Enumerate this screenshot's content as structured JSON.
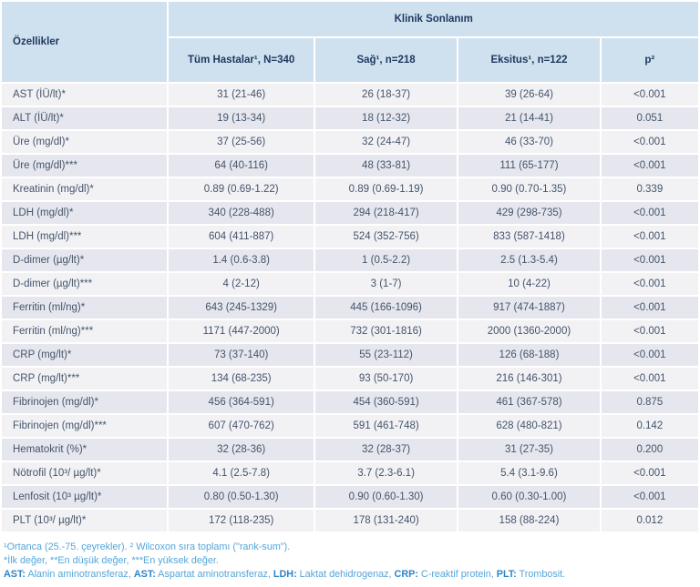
{
  "table": {
    "corner_header": "Özellikler",
    "group_header": "Klinik Sonlanım",
    "columns": [
      "Tüm Hastalar¹, N=340",
      "Sağ¹, n=218",
      "Eksitus¹, n=122",
      "p²"
    ],
    "rows": [
      {
        "label": "AST (İÜ/lt)*",
        "values": [
          "31 (21-46)",
          "26 (18-37)",
          "39 (26-64)",
          "<0.001"
        ]
      },
      {
        "label": "ALT (İÜ/lt)*",
        "values": [
          "19 (13-34)",
          "18 (12-32)",
          "21 (14-41)",
          "0.051"
        ]
      },
      {
        "label": "Üre (mg/dl)*",
        "values": [
          "37 (25-56)",
          "32 (24-47)",
          "46 (33-70)",
          "<0.001"
        ]
      },
      {
        "label": "Üre (mg/dl)***",
        "values": [
          "64 (40-116)",
          "48 (33-81)",
          "111 (65-177)",
          "<0.001"
        ]
      },
      {
        "label": "Kreatinin (mg/dl)*",
        "values": [
          "0.89 (0.69-1.22)",
          "0.89 (0.69-1.19)",
          "0.90 (0.70-1.35)",
          "0.339"
        ]
      },
      {
        "label": "LDH (mg/dl)*",
        "values": [
          "340 (228-488)",
          "294 (218-417)",
          "429 (298-735)",
          "<0.001"
        ]
      },
      {
        "label": "LDH (mg/dl)***",
        "values": [
          "604 (411-887)",
          "524 (352-756)",
          "833 (587-1418)",
          "<0.001"
        ]
      },
      {
        "label": "D-dimer (µg/lt)*",
        "values": [
          "1.4 (0.6-3.8)",
          "1 (0.5-2.2)",
          "2.5 (1.3-5.4)",
          "<0.001"
        ]
      },
      {
        "label": "D-dimer (µg/lt)***",
        "values": [
          "4 (2-12)",
          "3 (1-7)",
          "10 (4-22)",
          "<0.001"
        ]
      },
      {
        "label": "Ferritin (ml/ng)*",
        "values": [
          "643 (245-1329)",
          "445 (166-1096)",
          "917 (474-1887)",
          "<0.001"
        ]
      },
      {
        "label": "Ferritin (ml/ng)***",
        "values": [
          "1171 (447-2000)",
          "732 (301-1816)",
          "2000 (1360-2000)",
          "<0.001"
        ]
      },
      {
        "label": "CRP (mg/lt)*",
        "values": [
          "73 (37-140)",
          "55 (23-112)",
          "126 (68-188)",
          "<0.001"
        ]
      },
      {
        "label": "CRP (mg/lt)***",
        "values": [
          "134 (68-235)",
          "93 (50-170)",
          "216 (146-301)",
          "<0.001"
        ]
      },
      {
        "label": "Fibrinojen (mg/dl)*",
        "values": [
          "456 (364-591)",
          "454 (360-591)",
          "461 (367-578)",
          "0.875"
        ]
      },
      {
        "label": "Fibrinojen (mg/dl)***",
        "values": [
          "607 (470-762)",
          "591 (461-748)",
          "628 (480-821)",
          "0.142"
        ]
      },
      {
        "label": "Hematokrit (%)*",
        "values": [
          "32 (28-36)",
          "32 (28-37)",
          "31 (27-35)",
          "0.200"
        ]
      },
      {
        "label": "Nötrofil (10³/ µg/lt)*",
        "values": [
          "4.1 (2.5-7.8)",
          "3.7 (2.3-6.1)",
          "5.4 (3.1-9.6)",
          "<0.001"
        ]
      },
      {
        "label": "Lenfosit (10³ µg/lt)*",
        "values": [
          "0.80 (0.50-1.30)",
          "0.90 (0.60-1.30)",
          "0.60 (0.30-1.00)",
          "<0.001"
        ]
      },
      {
        "label": "PLT (10³/ µg/lt)*",
        "values": [
          "172 (118-235)",
          "178 (131-240)",
          "158 (88-224)",
          "0.012"
        ]
      }
    ]
  },
  "footnotes": {
    "line1": "¹Ortanca (25.-75. çeyrekler). ² Wilcoxon sıra toplamı (\"rank-sum\").",
    "line2": "*İlk değer, **En düşük değer, ***En yüksek değer.",
    "abbreviations": [
      {
        "label": "AST:",
        "text": " Alanin aminotransferaz, "
      },
      {
        "label": "AST:",
        "text": " Aspartat aminotransferaz, "
      },
      {
        "label": "LDH:",
        "text": " Laktat dehidrogenaz, "
      },
      {
        "label": "CRP:",
        "text": " C-reaktif protein, "
      },
      {
        "label": "PLT:",
        "text": " Trombosit."
      }
    ]
  },
  "colors": {
    "header_bg": "#cfe0ef",
    "header_text": "#1f3a60",
    "row_light": "#f2f2f5",
    "row_dark": "#e6e7ee",
    "body_text": "#44546a",
    "footnote_text": "#54a6d8",
    "footnote_bold": "#2e86c8"
  },
  "chart_data": {
    "type": "table",
    "title": "Klinik Sonlanım",
    "row_header": "Özellikler",
    "columns": [
      "Tüm Hastalar¹, N=340",
      "Sağ¹, n=218",
      "Eksitus¹, n=122",
      "p²"
    ]
  }
}
